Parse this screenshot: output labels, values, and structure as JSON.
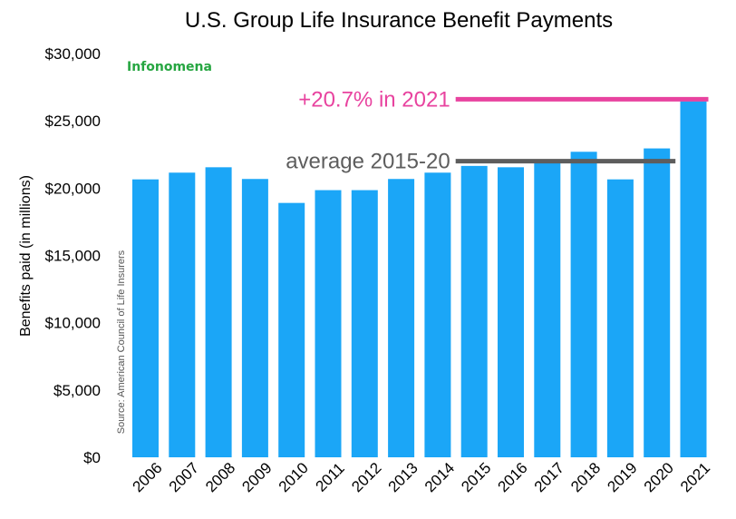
{
  "chart_data": {
    "type": "bar",
    "title": "U.S. Group Life Insurance Benefit Payments",
    "ylabel": "Benefits paid (in millions)",
    "source": "Source: American Council of Life Insurers",
    "brand": "Infonomena",
    "categories": [
      "2006",
      "2007",
      "2008",
      "2009",
      "2010",
      "2011",
      "2012",
      "2013",
      "2014",
      "2015",
      "2016",
      "2017",
      "2018",
      "2019",
      "2020",
      "2021"
    ],
    "values": [
      20650,
      21150,
      21550,
      20680,
      18900,
      19850,
      19850,
      20680,
      21150,
      21650,
      21550,
      22000,
      22700,
      20650,
      22950,
      26450
    ],
    "ylim": [
      0,
      30000
    ],
    "yticks": [
      "$0",
      "$5,000",
      "$10,000",
      "$15,000",
      "$20,000",
      "$25,000",
      "$30,000"
    ],
    "ytick_values": [
      0,
      5000,
      10000,
      15000,
      20000,
      25000,
      30000
    ],
    "grid": false,
    "annotations": [
      {
        "text": "+20.7% in 2021",
        "value": 26600,
        "from_category": "2015",
        "to_category": "2021",
        "color": "#e8439f"
      },
      {
        "text": "average 2015-20",
        "value": 22000,
        "from_category": "2015",
        "to_category": "2020",
        "color": "#5d5d5d"
      }
    ],
    "colors": {
      "bar": "#1ba6f7",
      "brand": "#26a641"
    }
  }
}
